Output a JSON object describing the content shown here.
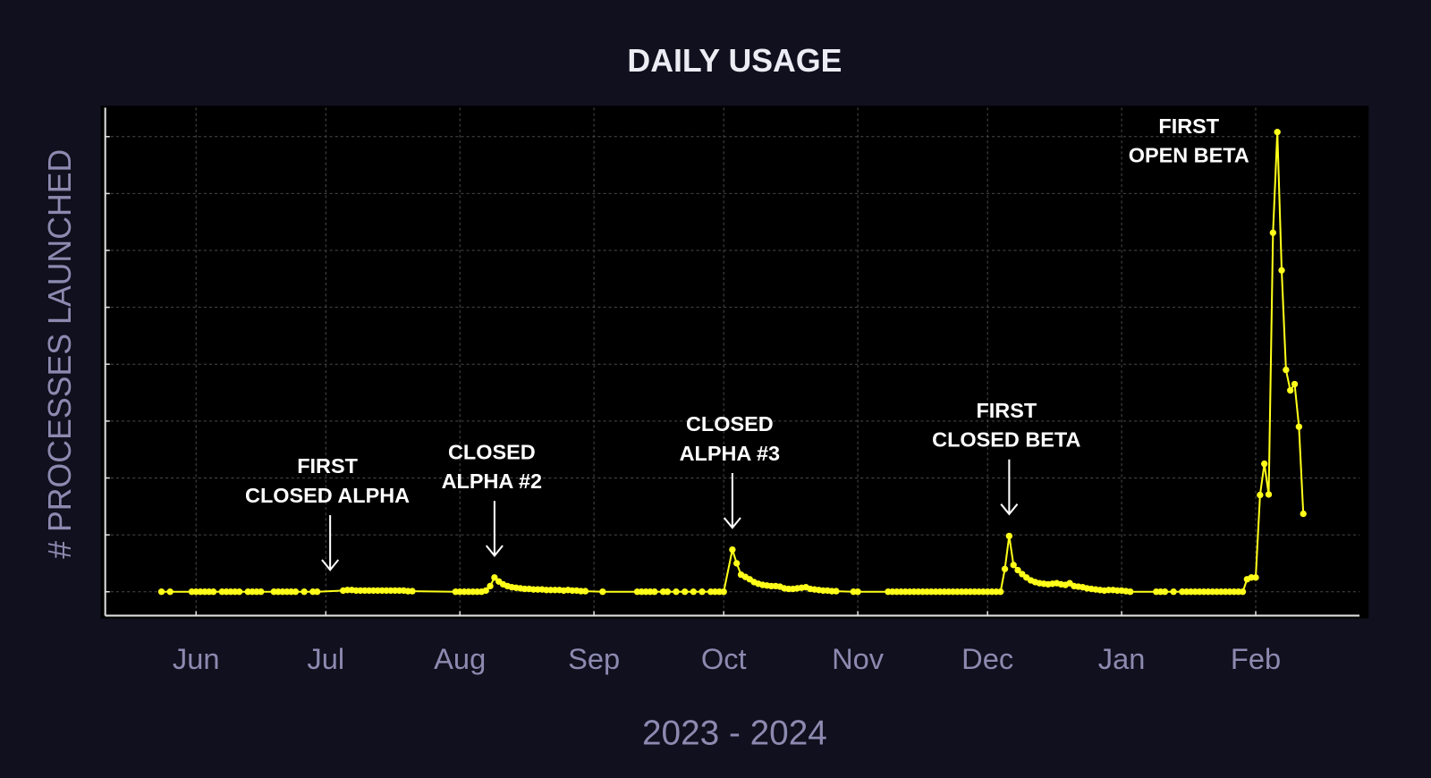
{
  "chart_data": {
    "type": "line",
    "title": "DAILY USAGE",
    "x_label": "2023 - 2024",
    "y_label": "# PROCESSES LAUNCHED",
    "color": "#ffff1a",
    "grid": true,
    "xlim": [
      -21,
      269
    ],
    "ylim": [
      -0.42,
      8.51
    ],
    "xticks": [
      {
        "value": 0,
        "label": "Jun"
      },
      {
        "value": 30,
        "label": "Jul"
      },
      {
        "value": 61,
        "label": "Aug"
      },
      {
        "value": 92,
        "label": "Sep"
      },
      {
        "value": 122,
        "label": "Oct"
      },
      {
        "value": 153,
        "label": "Nov"
      },
      {
        "value": 183,
        "label": "Dec"
      },
      {
        "value": 214,
        "label": "Jan"
      },
      {
        "value": 245,
        "label": "Feb"
      }
    ],
    "yticks": [
      0,
      1,
      2,
      3,
      4,
      5,
      6,
      7,
      8
    ],
    "x": [
      -8,
      -6,
      -1,
      0,
      1,
      2,
      3,
      4,
      6,
      7,
      8,
      9,
      10,
      12,
      13,
      14,
      15,
      18,
      19,
      20,
      21,
      22,
      23,
      25,
      27,
      28,
      34,
      35,
      36,
      37,
      38,
      39,
      40,
      41,
      42,
      43,
      44,
      45,
      46,
      47,
      48,
      49,
      50,
      60,
      61,
      62,
      63,
      64,
      65,
      66,
      67,
      68,
      69,
      70,
      71,
      72,
      73,
      74,
      75,
      76,
      77,
      78,
      79,
      80,
      81,
      82,
      83,
      84,
      85,
      86,
      87,
      88,
      89,
      90,
      94,
      102,
      103,
      104,
      105,
      106,
      108,
      109,
      111,
      113,
      115,
      117,
      119,
      120,
      121,
      122,
      124,
      125,
      126,
      127,
      128,
      129,
      130,
      131,
      132,
      133,
      134,
      135,
      136,
      137,
      138,
      139,
      140,
      141,
      142,
      143,
      144,
      145,
      146,
      147,
      148,
      152,
      153,
      160,
      161,
      162,
      163,
      164,
      165,
      166,
      167,
      168,
      169,
      170,
      171,
      172,
      173,
      174,
      175,
      176,
      177,
      178,
      179,
      180,
      181,
      182,
      183,
      184,
      185,
      186,
      187,
      188,
      189,
      190,
      191,
      192,
      193,
      194,
      195,
      196,
      197,
      198,
      199,
      200,
      201,
      202,
      203,
      204,
      205,
      206,
      207,
      208,
      209,
      210,
      211,
      212,
      213,
      214,
      215,
      216,
      222,
      223,
      224,
      226,
      228,
      229,
      230,
      231,
      232,
      233,
      234,
      235,
      236,
      237,
      238,
      239,
      240,
      241,
      242,
      243,
      244,
      245,
      246,
      247,
      248,
      249,
      250,
      251,
      252,
      253,
      254,
      255,
      256
    ],
    "values": [
      0,
      0,
      0,
      0,
      0,
      0,
      0,
      0,
      0,
      0,
      0,
      0,
      0,
      0,
      0,
      0,
      0,
      0,
      0,
      0,
      0,
      0,
      0,
      0,
      0,
      0,
      0.02,
      0.03,
      0.03,
      0.02,
      0.02,
      0.02,
      0.02,
      0.02,
      0.02,
      0.02,
      0.02,
      0.02,
      0.02,
      0.02,
      0.02,
      0.01,
      0.01,
      0,
      0,
      0,
      0,
      0,
      0,
      0,
      0.02,
      0.1,
      0.25,
      0.18,
      0.13,
      0.1,
      0.08,
      0.07,
      0.06,
      0.05,
      0.05,
      0.04,
      0.04,
      0.04,
      0.03,
      0.03,
      0.03,
      0.03,
      0.02,
      0.03,
      0.02,
      0.02,
      0.01,
      0.01,
      0,
      0,
      0,
      0,
      0,
      0,
      0,
      0,
      0,
      0,
      0,
      0,
      0,
      0,
      0,
      0,
      0.74,
      0.5,
      0.3,
      0.26,
      0.22,
      0.17,
      0.14,
      0.12,
      0.11,
      0.1,
      0.1,
      0.09,
      0.06,
      0.05,
      0.05,
      0.06,
      0.07,
      0.08,
      0.05,
      0.04,
      0.03,
      0.02,
      0.02,
      0.01,
      0.01,
      0,
      0,
      0,
      0,
      0,
      0,
      0,
      0,
      0,
      0,
      0,
      0,
      0,
      0,
      0,
      0,
      0,
      0,
      0,
      0,
      0,
      0,
      0,
      0,
      0,
      0,
      0,
      0,
      0,
      0.4,
      0.98,
      0.47,
      0.38,
      0.31,
      0.25,
      0.2,
      0.17,
      0.15,
      0.14,
      0.13,
      0.14,
      0.15,
      0.13,
      0.12,
      0.15,
      0.1,
      0.09,
      0.08,
      0.06,
      0.05,
      0.04,
      0.03,
      0.02,
      0.03,
      0.03,
      0.02,
      0.02,
      0.01,
      0,
      0,
      0,
      0,
      0,
      0,
      0,
      0,
      0,
      0,
      0,
      0,
      0,
      0,
      0,
      0,
      0,
      0,
      0,
      0,
      0.22,
      0.25,
      0.25,
      1.7,
      2.25,
      1.71,
      6.31,
      8.08,
      5.65,
      3.9,
      3.54,
      3.65,
      2.9,
      1.37
    ],
    "annotations": [
      {
        "lines": [
          "FIRST",
          "CLOSED ALPHA"
        ],
        "x": 31,
        "arrow": true
      },
      {
        "lines": [
          "CLOSED",
          "ALPHA #2"
        ],
        "x": 69,
        "arrow": true
      },
      {
        "lines": [
          "CLOSED",
          "ALPHA #3"
        ],
        "x": 124,
        "arrow": true
      },
      {
        "lines": [
          "FIRST",
          "CLOSED BETA"
        ],
        "x": 188,
        "arrow": true
      },
      {
        "lines": [
          "FIRST",
          "OPEN BETA"
        ],
        "x": 250,
        "arrow": false
      }
    ]
  }
}
